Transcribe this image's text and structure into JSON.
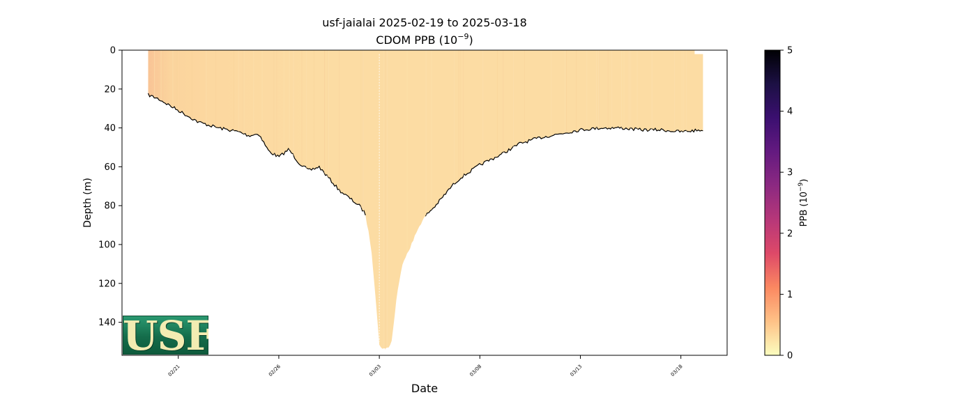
{
  "chart_data": {
    "type": "heatmap",
    "title": "usf-jaialai 2025-02-19 to 2025-03-18",
    "subtitle": "CDOM PPB (10",
    "subtitle_exp": "−9",
    "subtitle_close": ")",
    "xlabel": "Date",
    "ylabel": "Depth (m)",
    "x_ticks": [
      "02/21",
      "02/26",
      "03/03",
      "03/08",
      "03/13",
      "03/18"
    ],
    "x_tick_days": [
      2,
      7,
      12,
      17,
      22,
      27
    ],
    "xlim_days": [
      -0.8,
      29.3
    ],
    "y_ticks": [
      "0",
      "20",
      "40",
      "60",
      "80",
      "100",
      "120",
      "140"
    ],
    "y_tick_values": [
      0,
      20,
      40,
      60,
      80,
      100,
      120,
      140
    ],
    "ylim": [
      157,
      0
    ],
    "y_inverted": true,
    "colorbar": {
      "label": "PPB (10",
      "label_exp": "−9",
      "label_close": ")",
      "ticks": [
        "0",
        "1",
        "2",
        "3",
        "4",
        "5"
      ],
      "tick_values": [
        0,
        1,
        2,
        3,
        4,
        5
      ],
      "range": [
        0,
        5
      ],
      "colormap": "magma_r",
      "colors": [
        "#fcfdbf",
        "#fec287",
        "#fb8861",
        "#de4968",
        "#b73779",
        "#8c2981",
        "#641a80",
        "#3b0f70",
        "#1c1044",
        "#000004"
      ]
    },
    "data_start_day": 0.5,
    "data_end_day": 28.1,
    "max_depth_profile": {
      "days": [
        0.5,
        1.0,
        2.0,
        3.0,
        4.0,
        5.0,
        5.5,
        6.0,
        6.5,
        7.0,
        7.5,
        8.0,
        8.5,
        9.0,
        9.5,
        10.0,
        10.5,
        11.0,
        11.3,
        11.6,
        11.8,
        12.0,
        12.3,
        12.6,
        12.9,
        13.2,
        13.6,
        14.0,
        14.4,
        14.8,
        15.2,
        15.6,
        16.0,
        17.0,
        18.0,
        19.0,
        20.0,
        21.0,
        22.0,
        23.0,
        24.0,
        25.0,
        26.0,
        27.0,
        28.1
      ],
      "depth_m": [
        23,
        25,
        31,
        37,
        40,
        42,
        44,
        43,
        52,
        55,
        51,
        58,
        62,
        60,
        66,
        72,
        76,
        80,
        84,
        102,
        125,
        152,
        154,
        151,
        124,
        108,
        100,
        90,
        84,
        80,
        75,
        70,
        66,
        59,
        54,
        48,
        45,
        43,
        41,
        40,
        40,
        41,
        41,
        42,
        41
      ]
    },
    "values_summary": {
      "typical_ppb": 0.2,
      "surface_early_ppb": 0.5,
      "deep_early_ppb": 0.45
    },
    "logo": "USF"
  }
}
